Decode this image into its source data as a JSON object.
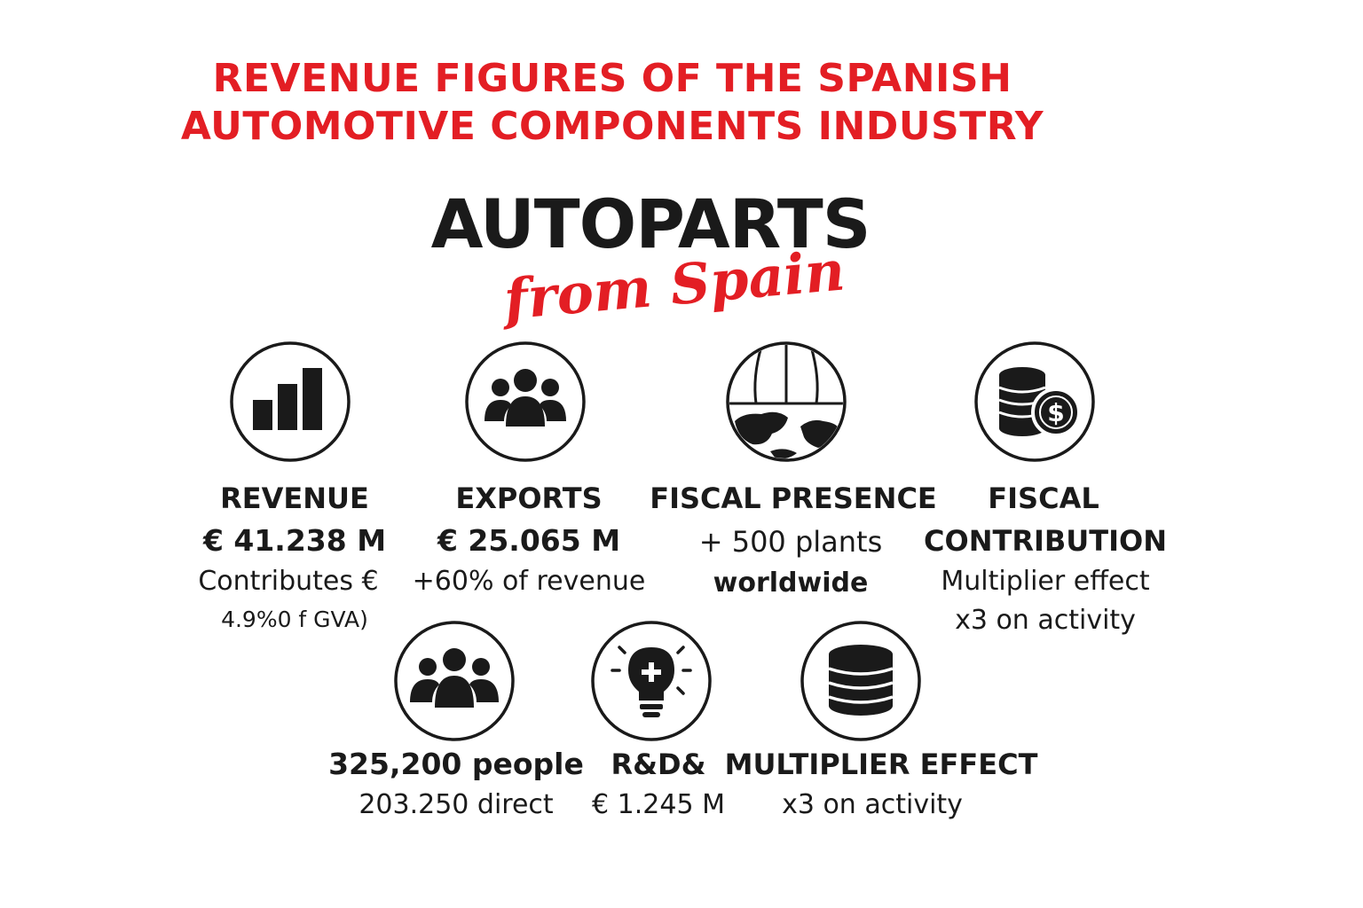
{
  "title_line1": "REVENUE FIGURES OF THE SPANISH",
  "title_line2": "AUTOMOTIVE COMPONENTS INDUSTRY",
  "brand": "AUTOPARTS",
  "brand_sub": "from Spain",
  "colors": {
    "accent": "#e31e24",
    "text": "#1a1a1a"
  },
  "revenue": {
    "icon": "bar-chart-icon",
    "heading": "REVENUE",
    "value": "€ 41.238 M",
    "note1": "Contributes €",
    "note2": "4.9%0 f GVA)"
  },
  "exports": {
    "icon": "group-icon",
    "heading": "EXPORTS",
    "value": "€ 25.065 M",
    "note1": "+60% of revenue"
  },
  "fiscal_presence": {
    "icon": "globe-icon",
    "heading": "FISCAL PRESENCE",
    "note1": "+ 500 plants",
    "note2": "worldwide"
  },
  "fiscal_contribution": {
    "icon": "coins-dollar-icon",
    "heading1": "FISCAL",
    "heading2": "CONTRIBUTION",
    "note1": "Multiplier effect",
    "note2": "x3 on activity"
  },
  "employment": {
    "icon": "people-icon",
    "value": "325,200 people",
    "note1": "203.250 direct"
  },
  "rdi": {
    "icon": "lightbulb-icon",
    "heading": "R&D&",
    "value": "€ 1.245 M"
  },
  "multiplier": {
    "icon": "database-icon",
    "heading": "MULTIPLIER EFFECT",
    "note1": "x3 on activity"
  }
}
